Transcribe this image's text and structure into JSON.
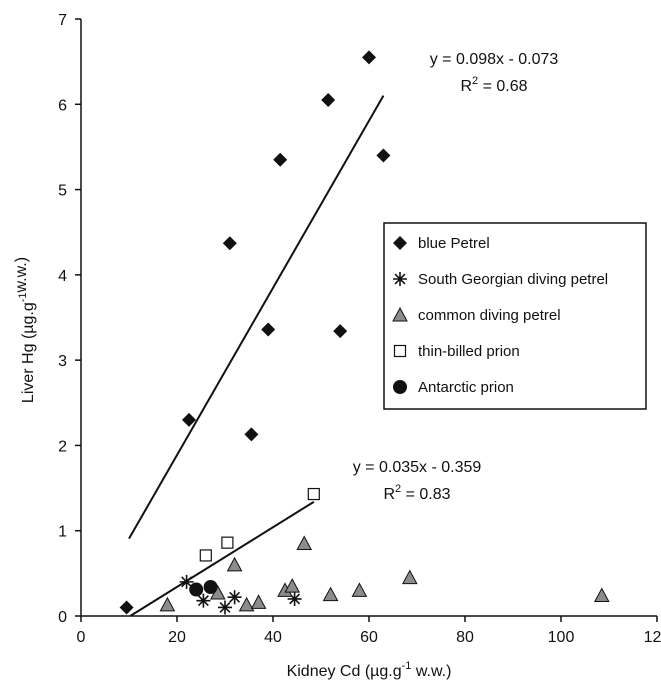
{
  "chart_data": {
    "type": "scatter",
    "title": "",
    "xlabel": "Kidney Cd (µg.g",
    "xlabel_sup": "-1",
    "xlabel_tail": " w.w.)",
    "ylabel": "Liver Hg (µg.g",
    "ylabel_sup": "-1",
    "ylabel_tail": "w.w.)",
    "xlim": [
      0,
      120
    ],
    "ylim": [
      0,
      7
    ],
    "x_ticks": [
      "0",
      "20",
      "40",
      "60",
      "80",
      "100",
      "120"
    ],
    "y_ticks": [
      "0",
      "1",
      "2",
      "3",
      "4",
      "5",
      "6",
      "7"
    ],
    "grid": false,
    "legend_position": "right",
    "series": [
      {
        "name": "blue Petrel",
        "marker": "diamond",
        "points": [
          [
            9.5,
            0.1
          ],
          [
            22.5,
            2.3
          ],
          [
            31,
            4.37
          ],
          [
            35.5,
            2.13
          ],
          [
            39,
            3.36
          ],
          [
            41.5,
            5.35
          ],
          [
            51.5,
            6.05
          ],
          [
            54,
            3.34
          ],
          [
            60,
            6.55
          ],
          [
            63,
            5.4
          ]
        ]
      },
      {
        "name": "South Georgian diving petrel",
        "marker": "asterisk",
        "points": [
          [
            22,
            0.4
          ],
          [
            25.5,
            0.18
          ],
          [
            30,
            0.1
          ],
          [
            32,
            0.22
          ],
          [
            44.5,
            0.2
          ]
        ]
      },
      {
        "name": "common diving petrel",
        "marker": "triangle",
        "points": [
          [
            18,
            0.13
          ],
          [
            28.5,
            0.27
          ],
          [
            32,
            0.6
          ],
          [
            34.5,
            0.13
          ],
          [
            37,
            0.16
          ],
          [
            42.5,
            0.3
          ],
          [
            44,
            0.35
          ],
          [
            46.5,
            0.85
          ],
          [
            52,
            0.25
          ],
          [
            58,
            0.3
          ],
          [
            68.5,
            0.45
          ],
          [
            108.5,
            0.24
          ]
        ]
      },
      {
        "name": "thin-billed prion",
        "marker": "square",
        "points": [
          [
            26,
            0.71
          ],
          [
            30.5,
            0.86
          ],
          [
            48.5,
            1.43
          ]
        ]
      },
      {
        "name": "Antarctic prion",
        "marker": "circle",
        "points": [
          [
            24,
            0.31
          ],
          [
            27,
            0.34
          ]
        ]
      }
    ],
    "trendlines": [
      {
        "series": "blue Petrel",
        "slope": 0.098,
        "intercept": -0.073,
        "x_range": [
          10,
          63
        ],
        "equation": "y = 0.098x - 0.073",
        "r2_prefix": "R",
        "r2_sup": "2",
        "r2_value": " = 0.68"
      },
      {
        "series": "thin-billed prion",
        "slope": 0.035,
        "intercept": -0.359,
        "x_range": [
          10.3,
          48.5
        ],
        "equation": "y = 0.035x - 0.359",
        "r2_prefix": "R",
        "r2_sup": "2",
        "r2_value": " = 0.83"
      }
    ],
    "colors": {
      "black": "#111111",
      "triangle_fill": "#8c8c8c",
      "white": "#ffffff"
    }
  }
}
